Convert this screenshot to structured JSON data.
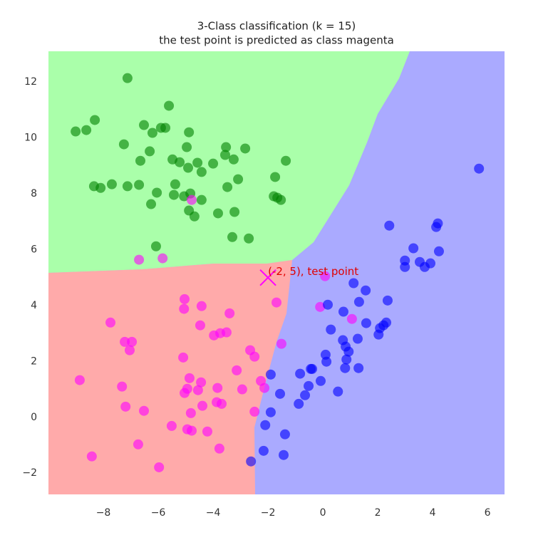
{
  "chart_data": {
    "type": "scatter",
    "title": "3-Class classification (k = 15)",
    "subtitle": "the test point is predicted as class magenta",
    "xlim": [
      -10,
      6.62
    ],
    "ylim": [
      -2.76,
      13.1
    ],
    "xticks": [
      {
        "value": -8,
        "label": "−8"
      },
      {
        "value": -6,
        "label": "−6"
      },
      {
        "value": -4,
        "label": "−4"
      },
      {
        "value": -2,
        "label": "−2"
      },
      0,
      2,
      4,
      6
    ],
    "yticks": [
      {
        "value": -2,
        "label": "−2"
      },
      0,
      2,
      4,
      6,
      8,
      10,
      12
    ],
    "grid": false,
    "series": [
      {
        "color": "#008000",
        "x": [
          -7.12,
          -5.61,
          -9.01,
          -8.62,
          -8.31,
          -6.52,
          -6.21,
          -5.9,
          -5.74,
          -4.88,
          -7.25,
          -6.31,
          -4.96,
          -3.53,
          -2.83,
          -5.48,
          -5.22,
          -4.91,
          -4.57,
          -4.0,
          -3.56,
          -3.25,
          -6.65,
          -4.42,
          -1.35,
          -1.74,
          -3.09,
          -3.48,
          -8.34,
          -8.1,
          -7.69,
          -7.12,
          -6.7,
          -5.38,
          -6.05,
          -5.43,
          -5.06,
          -4.83,
          -4.42,
          -6.26,
          -4.88,
          -4.68,
          -3.82,
          -3.22,
          -1.79,
          -1.53,
          -3.3,
          -2.7,
          -6.08,
          -1.66
        ],
        "values": [
          12.14,
          11.15,
          10.23,
          10.28,
          10.64,
          10.46,
          10.18,
          10.36,
          10.36,
          10.2,
          9.77,
          9.52,
          9.67,
          9.67,
          9.62,
          9.23,
          9.13,
          8.93,
          9.11,
          9.08,
          9.39,
          9.23,
          9.18,
          8.78,
          9.18,
          8.6,
          8.52,
          8.24,
          8.27,
          8.21,
          8.34,
          8.27,
          8.32,
          8.34,
          8.04,
          7.96,
          7.91,
          8.01,
          7.78,
          7.63,
          7.4,
          7.19,
          7.3,
          7.35,
          7.91,
          7.78,
          6.45,
          6.4,
          6.12,
          7.86
        ]
      },
      {
        "color": "#ff00ff",
        "x": [
          -6.7,
          -5.84,
          -4.78,
          0.08,
          -5.04,
          -5.06,
          -4.42,
          -3.4,
          -1.69,
          -0.1,
          1.06,
          -7.74,
          -4.47,
          -7.22,
          -6.96,
          -7.04,
          -3.97,
          -3.74,
          -3.51,
          -2.65,
          -2.49,
          -1.51,
          -5.09,
          -3.14,
          -8.86,
          -4.86,
          -4.44,
          -7.32,
          -4.94,
          -5.04,
          -4.55,
          -3.84,
          -2.94,
          -2.26,
          -2.13,
          -3.87,
          -3.69,
          -4.39,
          -7.19,
          -6.52,
          -2.49,
          -4.81,
          -5.51,
          -4.94,
          -4.78,
          -4.21,
          -3.77,
          -6.73,
          -8.42,
          -5.97
        ],
        "values": [
          5.64,
          5.69,
          7.78,
          5.05,
          4.23,
          3.88,
          3.98,
          3.72,
          4.11,
          3.95,
          3.52,
          3.39,
          3.29,
          2.7,
          2.7,
          2.4,
          2.93,
          3.01,
          3.04,
          2.4,
          2.17,
          2.63,
          2.14,
          1.68,
          1.33,
          1.4,
          1.25,
          1.1,
          1.02,
          0.87,
          0.97,
          1.05,
          1.0,
          1.3,
          1.05,
          0.54,
          0.48,
          0.41,
          0.38,
          0.23,
          0.2,
          0.15,
          -0.31,
          -0.43,
          -0.48,
          -0.51,
          -1.12,
          -0.97,
          -1.4,
          -1.79
        ]
      },
      {
        "color": "#0000ff",
        "x": [
          5.69,
          2.42,
          4.19,
          4.13,
          4.23,
          3.3,
          2.99,
          2.99,
          3.53,
          3.92,
          3.71,
          1.12,
          1.56,
          2.36,
          1.32,
          0.18,
          0.75,
          1.58,
          2.31,
          2.21,
          2.08,
          2.03,
          0.29,
          0.73,
          1.27,
          0.83,
          0.94,
          0.1,
          0.13,
          0.86,
          0.81,
          1.3,
          -1.9,
          -0.83,
          -0.44,
          -0.39,
          -0.08,
          -0.52,
          -0.65,
          -1.56,
          0.55,
          -0.88,
          -1.9,
          -2.1,
          -1.38,
          -2.16,
          -1.43,
          -2.62
        ],
        "values": [
          8.9,
          6.86,
          6.94,
          6.81,
          5.94,
          6.05,
          5.61,
          5.38,
          5.56,
          5.51,
          5.38,
          4.8,
          4.54,
          4.18,
          4.13,
          4.03,
          3.78,
          3.37,
          3.39,
          3.29,
          3.19,
          2.96,
          3.14,
          2.76,
          2.81,
          2.53,
          2.35,
          2.24,
          1.99,
          2.07,
          1.76,
          1.76,
          1.53,
          1.56,
          1.73,
          1.73,
          1.3,
          1.12,
          0.79,
          0.84,
          0.92,
          0.48,
          0.18,
          -0.28,
          -0.61,
          -1.2,
          -1.35,
          -1.58
        ]
      }
    ],
    "test_point": {
      "x": -2,
      "y": 5,
      "color": "#ff00ff"
    },
    "annotation": {
      "text": "(-2, 5), test point",
      "color": "#e00000"
    }
  }
}
